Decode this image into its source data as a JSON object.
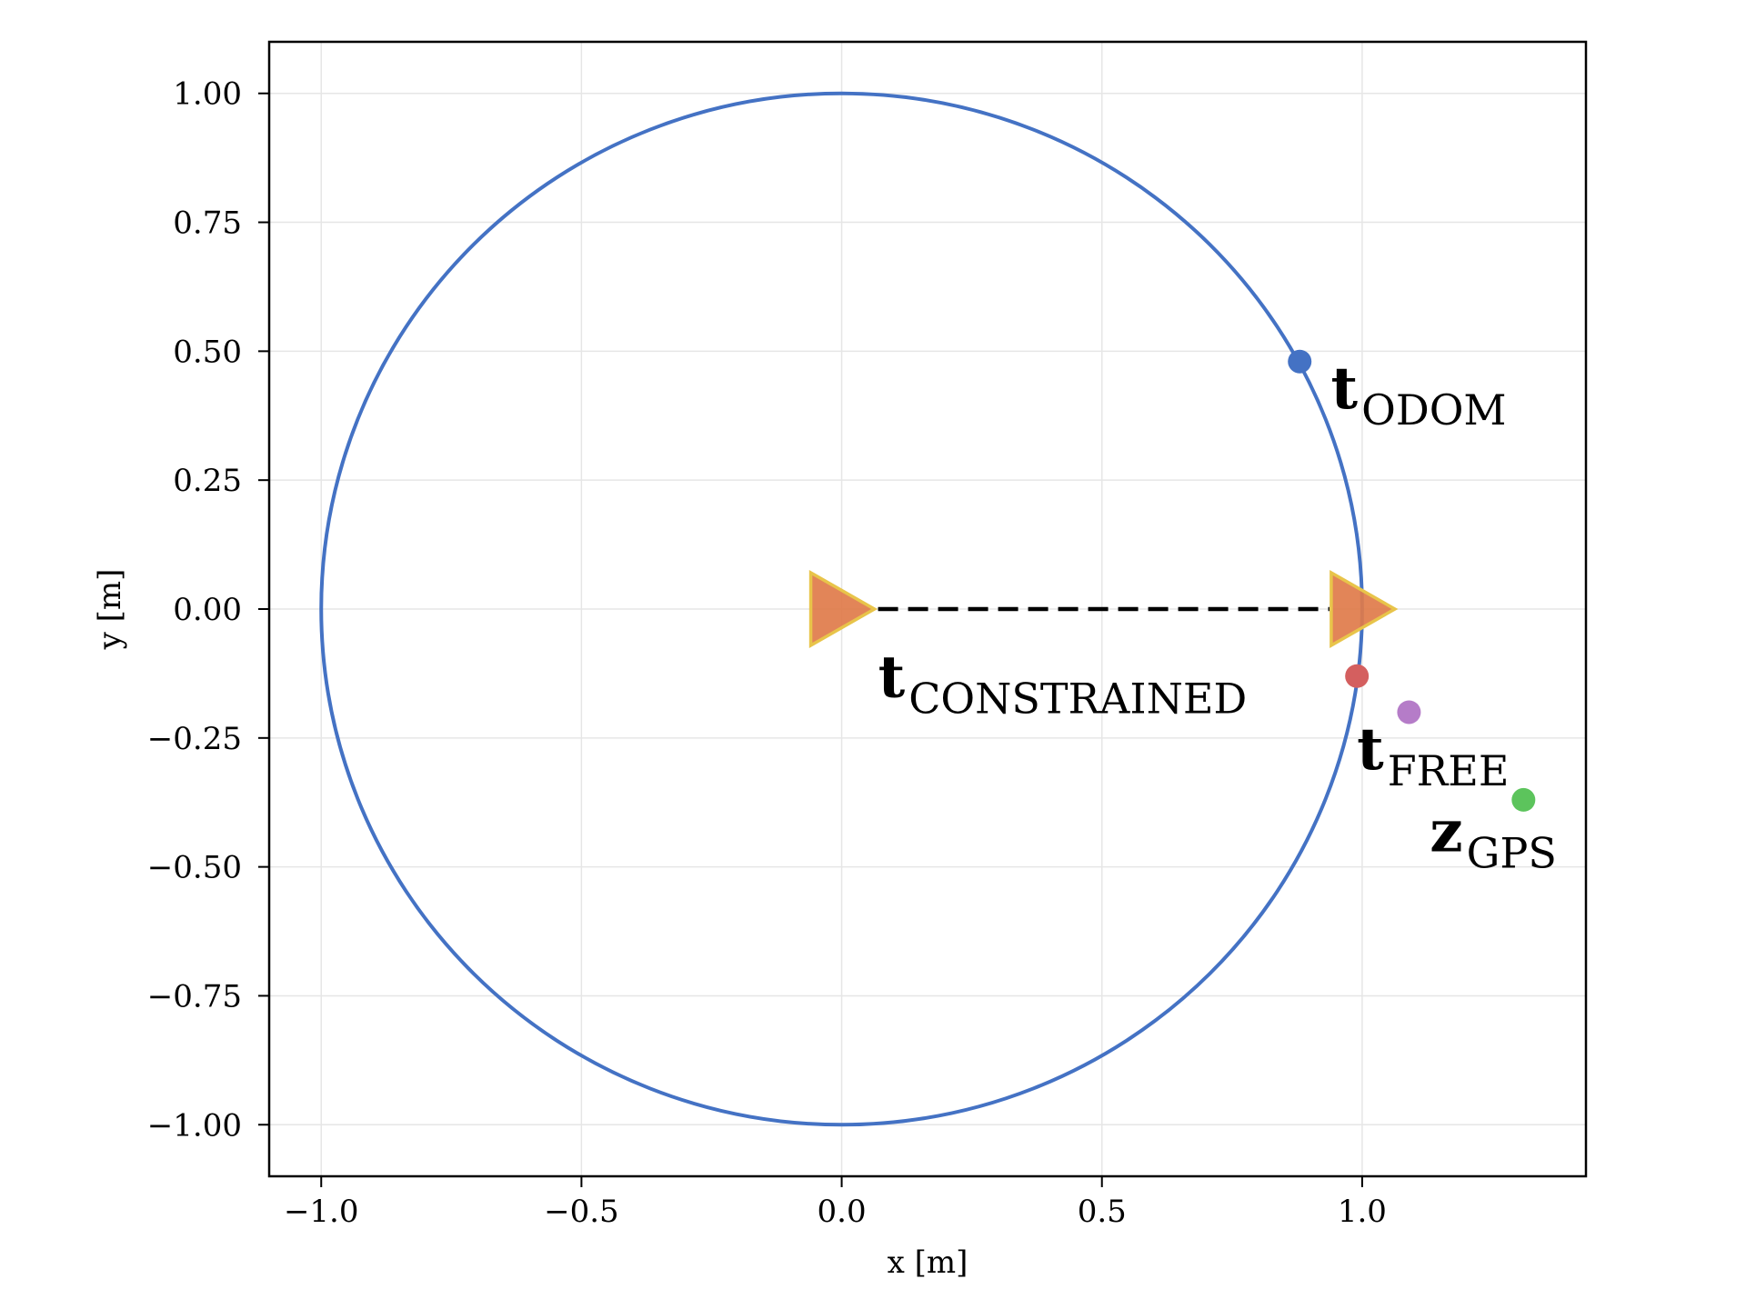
{
  "chart_data": {
    "type": "scatter",
    "title": "",
    "xlabel": "x [m]",
    "ylabel": "y [m]",
    "xlim": [
      -1.1,
      1.43
    ],
    "ylim": [
      -1.1,
      1.1
    ],
    "grid": true,
    "x_ticks": [
      -1.0,
      -0.5,
      0.0,
      0.5,
      1.0
    ],
    "x_tick_labels": [
      "−1.0",
      "−0.5",
      "0.0",
      "0.5",
      "1.0"
    ],
    "y_ticks": [
      1.0,
      0.75,
      0.5,
      0.25,
      0.0,
      -0.25,
      -0.5,
      -0.75,
      -1.0
    ],
    "y_tick_labels": [
      "1.00",
      "0.75",
      "0.50",
      "0.25",
      "0.00",
      "−0.25",
      "−0.50",
      "−0.75",
      "−1.00"
    ],
    "circle": {
      "center": [
        0,
        0
      ],
      "radius": 1.0,
      "color": "#4472c4"
    },
    "poses": [
      {
        "x": 0.0,
        "y": 0.0,
        "fill": "#e07b4a",
        "edge": "#e8c44a"
      },
      {
        "x": 1.0,
        "y": 0.0,
        "fill": "#e07b4a",
        "edge": "#e8c44a"
      }
    ],
    "constraint_line": {
      "from": [
        0.0,
        0.0
      ],
      "to": [
        1.0,
        0.0
      ],
      "style": "dashed",
      "color": "#000000"
    },
    "points": [
      {
        "x": 0.88,
        "y": 0.48,
        "color": "#4472c4"
      },
      {
        "x": 0.99,
        "y": -0.13,
        "color": "#d45f5f"
      },
      {
        "x": 1.09,
        "y": -0.2,
        "color": "#b57cc8"
      },
      {
        "x": 1.31,
        "y": -0.37,
        "color": "#5cc45c"
      }
    ],
    "annotations": [
      {
        "main": "t",
        "sub": "ODOM",
        "x": 0.94,
        "y": 0.39
      },
      {
        "main": "t",
        "sub": "CONSTRAINED",
        "x": 0.07,
        "y": -0.17
      },
      {
        "main": "t",
        "sub": "FREE",
        "x": 0.99,
        "y": -0.31
      },
      {
        "main": "z",
        "sub": "GPS",
        "x": 1.13,
        "y": -0.47
      }
    ]
  }
}
